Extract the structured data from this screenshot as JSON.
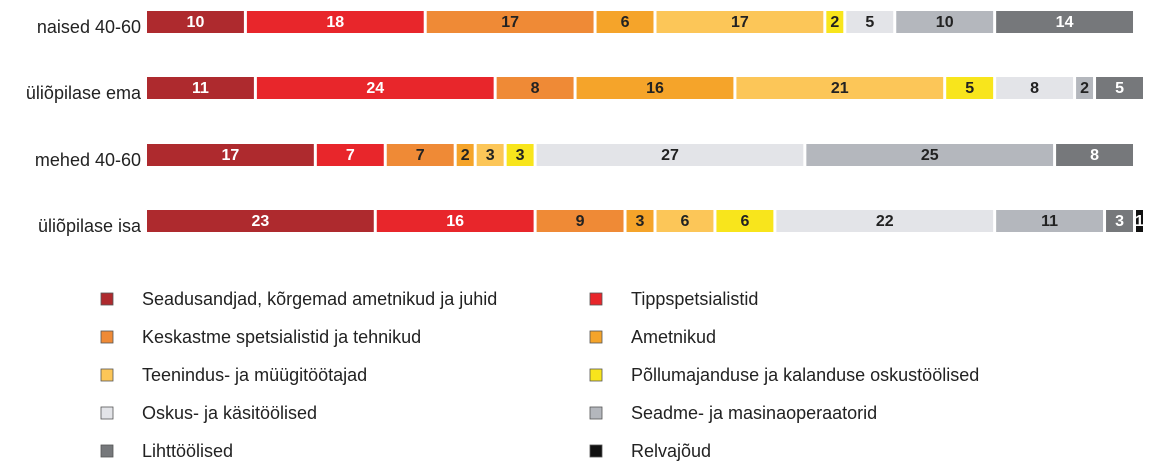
{
  "chart_data": {
    "type": "stacked_bar_horizontal",
    "categories": [
      "naised 40-60",
      "üliõpilase ema",
      "mehed 40-60",
      "üliõpilase isa"
    ],
    "series": [
      {
        "name": "Seadusandjad, kõrgemad ametnikud ja juhid",
        "color": "#ae2a2e",
        "values": [
          10,
          11,
          17,
          23
        ]
      },
      {
        "name": "Tippspetsialistid",
        "color": "#e8262b",
        "values": [
          18,
          24,
          7,
          16
        ]
      },
      {
        "name": "Keskastme spetsialistid ja tehnikud",
        "color": "#ef8a36",
        "values": [
          17,
          8,
          7,
          9
        ]
      },
      {
        "name": "Ametnikud",
        "color": "#f5a42a",
        "values": [
          6,
          16,
          2,
          3
        ]
      },
      {
        "name": "Teenindus- ja müügitöötajad",
        "color": "#fcc658",
        "values": [
          17,
          21,
          3,
          6
        ]
      },
      {
        "name": "Põllumajanduse ja kalanduse oskustöölised",
        "color": "#f8e51c",
        "values": [
          2,
          5,
          3,
          6
        ]
      },
      {
        "name": "Oskus- ja käsitöölised",
        "color": "#e3e4e8",
        "values": [
          5,
          8,
          27,
          22
        ]
      },
      {
        "name": "Seadme- ja masinaoperaatorid",
        "color": "#b4b7bd",
        "values": [
          10,
          2,
          25,
          11
        ]
      },
      {
        "name": "Lihttöölised",
        "color": "#76787b",
        "values": [
          14,
          5,
          8,
          3
        ]
      },
      {
        "name": "Relvajõud",
        "color": "#111111",
        "values": [
          null,
          null,
          null,
          1
        ]
      }
    ]
  }
}
